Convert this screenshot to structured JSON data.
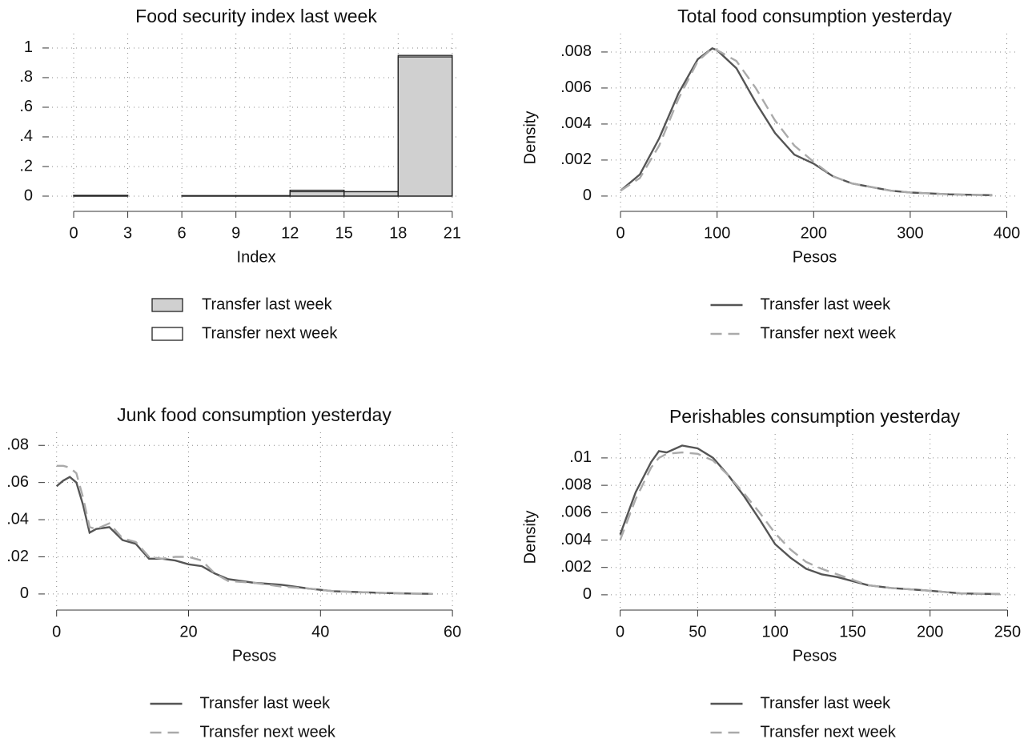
{
  "chart_data": [
    {
      "type": "histogram",
      "title": "Food security index last week",
      "xlabel": "Index",
      "bins": [
        0,
        3,
        6,
        9,
        12,
        15,
        18,
        21
      ],
      "series": [
        {
          "name": "Transfer last week",
          "color": "#d0d0d0",
          "values": [
            0.005,
            0,
            0.003,
            0.003,
            0.03,
            0.03,
            0.94
          ]
        },
        {
          "name": "Transfer next week",
          "color": "#ffffff",
          "values": [
            0.005,
            0,
            0.003,
            0.003,
            0.04,
            0.03,
            0.95
          ]
        }
      ],
      "xlim": [
        -1.2,
        21.45
      ],
      "ylim": [
        -0.092,
        1.097
      ],
      "xticks": [
        0,
        3,
        6,
        9,
        12,
        15,
        18,
        21
      ],
      "yticks": [
        0,
        {
          "value": 0.2,
          "label": ".2"
        },
        {
          "value": 0.4,
          "label": ".4"
        },
        {
          "value": 0.6,
          "label": ".6"
        },
        {
          "value": 0.8,
          "label": ".8"
        },
        1
      ],
      "grid": true,
      "legend": "bottom"
    },
    {
      "type": "line",
      "title": "Total food consumption yesterday",
      "xlabel": "Pesos",
      "ylabel": "Density",
      "x": [
        0,
        20,
        40,
        60,
        80,
        95,
        100,
        120,
        140,
        160,
        180,
        200,
        220,
        240,
        260,
        280,
        300,
        340,
        385
      ],
      "series": [
        {
          "name": "Transfer last week",
          "color": "#555555",
          "line_style": "solid",
          "values": [
            0.0003,
            0.0012,
            0.0032,
            0.0057,
            0.0076,
            0.0082,
            0.0081,
            0.0071,
            0.0052,
            0.0035,
            0.0023,
            0.0018,
            0.0011,
            0.0007,
            0.0005,
            0.0003,
            0.0002,
            0.0001,
            5e-05
          ]
        },
        {
          "name": "Transfer next week",
          "color": "#aaaaaa",
          "line_style": "dashed",
          "values": [
            0.0003,
            0.001,
            0.0028,
            0.0054,
            0.0075,
            0.0082,
            0.0081,
            0.0075,
            0.006,
            0.0042,
            0.0028,
            0.0019,
            0.0011,
            0.0007,
            0.0005,
            0.0003,
            0.0002,
            0.0001,
            3e-05
          ]
        }
      ],
      "xlim": [
        -10,
        412
      ],
      "ylim": [
        -0.00076,
        0.00902
      ],
      "xticks": [
        0,
        100,
        200,
        300,
        400
      ],
      "yticks": [
        0,
        {
          "value": 0.002,
          "label": ".002"
        },
        {
          "value": 0.004,
          "label": ".004"
        },
        {
          "value": 0.006,
          "label": ".006"
        },
        {
          "value": 0.008,
          "label": ".008"
        }
      ],
      "grid": true,
      "legend": "bottom"
    },
    {
      "type": "line",
      "title": "Junk food consumption yesterday",
      "xlabel": "Pesos",
      "x": [
        0,
        1,
        2,
        3,
        4,
        5,
        6,
        8,
        10,
        12,
        14,
        16,
        18,
        20,
        22,
        24,
        26,
        30,
        34,
        38,
        42,
        46,
        50,
        54,
        57
      ],
      "series": [
        {
          "name": "Transfer last week",
          "color": "#555555",
          "line_style": "solid",
          "values": [
            0.058,
            0.061,
            0.063,
            0.06,
            0.048,
            0.033,
            0.035,
            0.036,
            0.029,
            0.027,
            0.019,
            0.019,
            0.018,
            0.016,
            0.015,
            0.011,
            0.008,
            0.006,
            0.005,
            0.003,
            0.0015,
            0.001,
            0.0005,
            0.0002,
            0.0001
          ]
        },
        {
          "name": "Transfer next week",
          "color": "#aaaaaa",
          "line_style": "dashed",
          "values": [
            0.069,
            0.069,
            0.068,
            0.065,
            0.052,
            0.036,
            0.035,
            0.038,
            0.03,
            0.028,
            0.02,
            0.019,
            0.02,
            0.02,
            0.018,
            0.011,
            0.007,
            0.006,
            0.004,
            0.003,
            0.0015,
            0.001,
            0.0005,
            0.0002,
            0.0001
          ]
        }
      ],
      "xlim": [
        -1.3,
        61.2
      ],
      "ylim": [
        -0.0078,
        0.087
      ],
      "xticks": [
        0,
        20,
        40,
        60
      ],
      "yticks": [
        0,
        {
          "value": 0.02,
          "label": ".02"
        },
        {
          "value": 0.04,
          "label": ".04"
        },
        {
          "value": 0.06,
          "label": ".06"
        },
        {
          "value": 0.08,
          "label": ".08"
        }
      ],
      "grid": true,
      "legend": "bottom"
    },
    {
      "type": "line",
      "title": "Perishables consumption yesterday",
      "xlabel": "Pesos",
      "ylabel": "Density",
      "x": [
        0,
        10,
        20,
        25,
        30,
        40,
        50,
        60,
        70,
        80,
        90,
        100,
        110,
        120,
        130,
        140,
        150,
        160,
        175,
        200,
        220,
        245
      ],
      "series": [
        {
          "name": "Transfer last week",
          "color": "#555555",
          "line_style": "solid",
          "values": [
            0.0044,
            0.0075,
            0.0097,
            0.0105,
            0.0104,
            0.0109,
            0.0107,
            0.01,
            0.0087,
            0.0072,
            0.0055,
            0.0037,
            0.0027,
            0.0019,
            0.0015,
            0.0013,
            0.001,
            0.0007,
            0.0005,
            0.0003,
            0.0001,
            5e-05
          ]
        },
        {
          "name": "Transfer next week",
          "color": "#aaaaaa",
          "line_style": "dashed",
          "values": [
            0.004,
            0.007,
            0.0093,
            0.01,
            0.0103,
            0.0104,
            0.0103,
            0.0098,
            0.0087,
            0.0074,
            0.006,
            0.0045,
            0.0033,
            0.0024,
            0.0019,
            0.0015,
            0.0011,
            0.0007,
            0.0005,
            0.0003,
            0.0001,
            5e-05
          ]
        }
      ],
      "xlim": [
        -6,
        257
      ],
      "ylim": [
        -0.001,
        0.01175
      ],
      "xticks": [
        0,
        50,
        100,
        150,
        200,
        250
      ],
      "yticks": [
        0,
        {
          "value": 0.002,
          "label": ".002"
        },
        {
          "value": 0.004,
          "label": ".004"
        },
        {
          "value": 0.006,
          "label": ".006"
        },
        {
          "value": 0.008,
          "label": ".008"
        },
        {
          "value": 0.01,
          "label": ".01"
        }
      ],
      "grid": true,
      "legend": "bottom"
    }
  ]
}
